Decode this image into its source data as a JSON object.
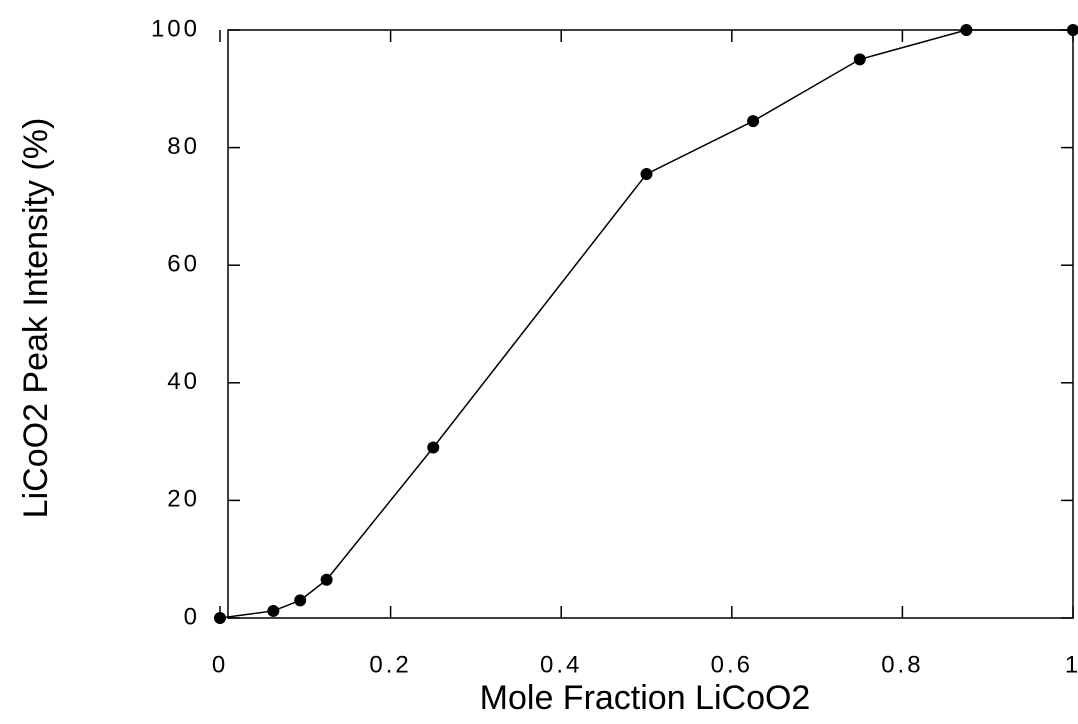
{
  "chart_data": {
    "type": "line",
    "xlabel": "Mole Fraction LiCoO2",
    "ylabel": "LiCoO2 Peak Intensity (%)",
    "x": [
      0,
      0.0625,
      0.094,
      0.125,
      0.25,
      0.5,
      0.625,
      0.75,
      0.875,
      1
    ],
    "series": [
      {
        "color": "#000000",
        "values": [
          0,
          1.2,
          3,
          6.5,
          29,
          75.5,
          84.5,
          95,
          100,
          100
        ]
      }
    ],
    "xlim": [
      0,
      1
    ],
    "xticks": [
      0,
      0.2,
      0.4,
      0.6,
      0.8,
      1
    ],
    "ylim": [
      0,
      100
    ],
    "yticks": [
      0,
      20,
      40,
      60,
      80,
      100
    ],
    "grid": false
  }
}
